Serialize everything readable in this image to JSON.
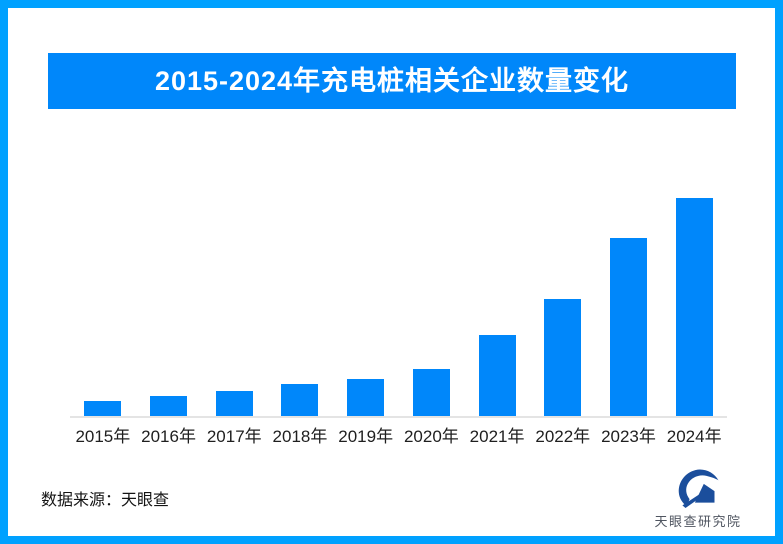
{
  "page": {
    "border_color": "#00A1FF",
    "background_color": "#FFFFFF"
  },
  "header": {
    "title": "2015-2024年充电桩相关企业数量变化",
    "banner_color": "#0087FA",
    "title_color": "#FFFFFF"
  },
  "chart_data": {
    "type": "bar",
    "title": "2015-2024年充电桩相关企业数量变化",
    "categories": [
      "2015年",
      "2016年",
      "2017年",
      "2018年",
      "2019年",
      "2020年",
      "2021年",
      "2022年",
      "2023年",
      "2024年"
    ],
    "values": [
      15,
      20,
      25,
      32,
      37,
      47,
      81,
      117,
      178,
      218
    ],
    "bar_color": "#0087FA",
    "axis_line_color": "#E4E4E4",
    "xlabel": "",
    "ylabel": "",
    "y_axis_visible": false,
    "gridlines": false,
    "data_labels": false,
    "legend": false,
    "note": "Chart shows no y-axis, gridlines or value labels; values are relative bar heights estimated from pixels (2024 tallest)."
  },
  "footer": {
    "source_text": "数据来源：天眼查",
    "logo_text": "天眼查研究院",
    "logo_color": "#1B4E9C",
    "logo_text_color": "#4F5560"
  }
}
